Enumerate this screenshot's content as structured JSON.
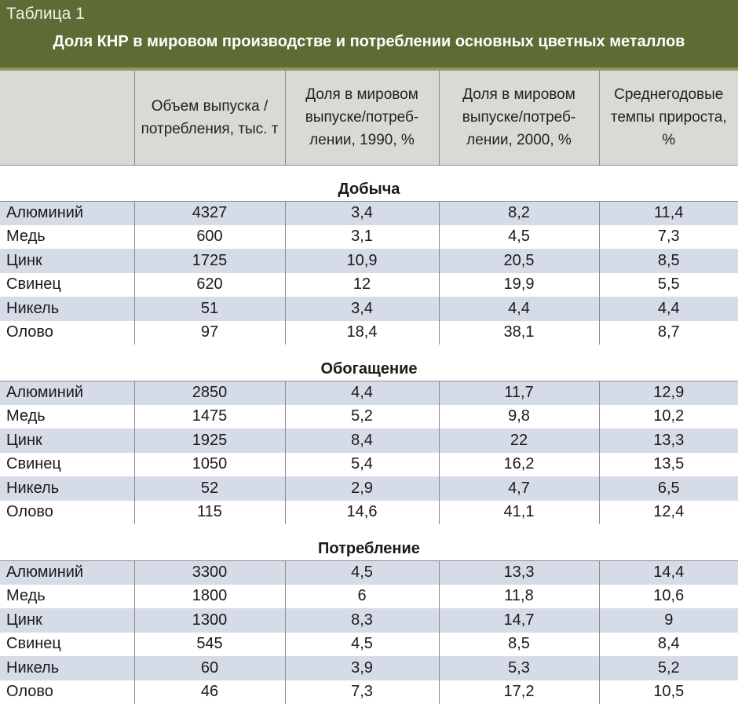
{
  "header": {
    "label": "Таблица 1",
    "title": "Доля КНР в мировом производстве и потреблении основных цветных металлов"
  },
  "columns": [
    "",
    "Объем выпуска / потребления, тыс. т",
    "Доля в мировом выпуске/потреб-лении, 1990, %",
    "Доля в мировом выпуске/потреб-лении, 2000, %",
    "Среднегодовые темпы прироста, %"
  ],
  "sections": [
    {
      "title": "Добыча",
      "rows": [
        [
          "Алюминий",
          "4327",
          "3,4",
          "8,2",
          "11,4"
        ],
        [
          "Медь",
          "600",
          "3,1",
          "4,5",
          "7,3"
        ],
        [
          "Цинк",
          "1725",
          "10,9",
          "20,5",
          "8,5"
        ],
        [
          "Свинец",
          "620",
          "12",
          "19,9",
          "5,5"
        ],
        [
          "Никель",
          "51",
          "3,4",
          "4,4",
          "4,4"
        ],
        [
          "Олово",
          "97",
          "18,4",
          "38,1",
          "8,7"
        ]
      ]
    },
    {
      "title": "Обогащение",
      "rows": [
        [
          "Алюминий",
          "2850",
          "4,4",
          "11,7",
          "12,9"
        ],
        [
          "Медь",
          "1475",
          "5,2",
          "9,8",
          "10,2"
        ],
        [
          "Цинк",
          "1925",
          "8,4",
          "22",
          "13,3"
        ],
        [
          "Свинец",
          "1050",
          "5,4",
          "16,2",
          "13,5"
        ],
        [
          "Никель",
          "52",
          "2,9",
          "4,7",
          "6,5"
        ],
        [
          "Олово",
          "115",
          "14,6",
          "41,1",
          "12,4"
        ]
      ]
    },
    {
      "title": "Потребление",
      "rows": [
        [
          "Алюминий",
          "3300",
          "4,5",
          "13,3",
          "14,4"
        ],
        [
          "Медь",
          "1800",
          "6",
          "11,8",
          "10,6"
        ],
        [
          "Цинк",
          "1300",
          "8,3",
          "14,7",
          "9"
        ],
        [
          "Свинец",
          "545",
          "4,5",
          "8,5",
          "8,4"
        ],
        [
          "Никель",
          "60",
          "3,9",
          "5,3",
          "5,2"
        ],
        [
          "Олово",
          "46",
          "7,3",
          "17,2",
          "10,5"
        ]
      ]
    }
  ],
  "colors": {
    "header_bg": "#5e6b35",
    "column_header_bg": "#d9d9d6",
    "row_shade": "#d6dbe8"
  }
}
